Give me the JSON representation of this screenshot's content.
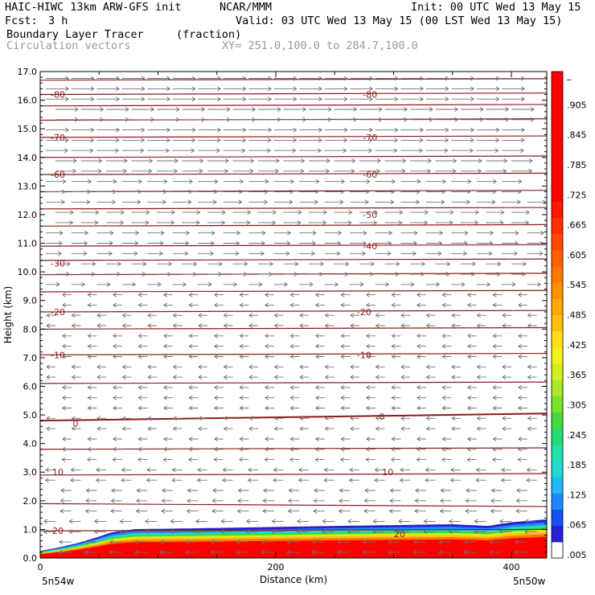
{
  "header": {
    "title": "HAIC-HIWC 13km ARW-GFS init",
    "org": "NCAR/MMM",
    "init": "Init: 00 UTC Wed 13 May 15",
    "fcst_label": "Fcst:",
    "fcst_value": "3 h",
    "valid": "Valid: 03 UTC Wed 13 May 15 (00 LST Wed 13 May 15)",
    "field_name": "Boundary Layer Tracer",
    "field_units": "(fraction)",
    "vector_label": "Circulation vectors",
    "xy_range": "XY= 251.0,100.0 to 284.7,100.0"
  },
  "footer": {
    "left_location": "5n54w",
    "right_location": "5n50w"
  },
  "colors": {
    "contour": "#8b1a1a",
    "vector": "#707070",
    "colorbar": [
      "#ffffff",
      "#2a1fd2",
      "#1650ee",
      "#1f88ff",
      "#22b6f2",
      "#22d6d2",
      "#20e0a8",
      "#28d870",
      "#46d840",
      "#7ae030",
      "#a8e828",
      "#d0f020",
      "#f4f020",
      "#ffe018",
      "#ffc010",
      "#ffa808",
      "#ff9000",
      "#ff7800",
      "#ff6000",
      "#ff4800",
      "#ff3000",
      "#ff1800",
      "#ff0000",
      "#ff0000",
      "#ff0000",
      "#ff0000",
      "#ff0000",
      "#ff0000",
      "#ff0000",
      "#ff0000"
    ]
  },
  "chart_data": {
    "type": "heatmap",
    "xlabel": "Distance (km)",
    "ylabel": "Height (km)",
    "xlim": [
      0,
      430
    ],
    "ylim": [
      0,
      17
    ],
    "x_ticks": [
      "0",
      "200",
      "400"
    ],
    "y_ticks": [
      "0.0",
      "1.0",
      "2.0",
      "3.0",
      "4.0",
      "5.0",
      "6.0",
      "7.0",
      "8.0",
      "9.0",
      "10.0",
      "11.0",
      "12.0",
      "13.0",
      "14.0",
      "15.0",
      "16.0",
      "17.0"
    ],
    "colorbar_labels": [
      ".005",
      ".065",
      ".125",
      ".185",
      ".245",
      ".305",
      ".365",
      ".425",
      ".485",
      ".545",
      ".605",
      ".665",
      ".725",
      ".785",
      ".845",
      ".905",
      "_"
    ],
    "tracer_top_km": [
      [
        0,
        0.45
      ],
      [
        30,
        0.7
      ],
      [
        60,
        1.0
      ],
      [
        100,
        1.02
      ],
      [
        150,
        1.05
      ],
      [
        250,
        1.12
      ],
      [
        350,
        1.18
      ],
      [
        380,
        1.12
      ],
      [
        400,
        1.25
      ],
      [
        430,
        1.35
      ]
    ],
    "contour_labels": [
      {
        "text": "-80",
        "x": 15,
        "y": 16.2
      },
      {
        "text": "-80",
        "x": 280,
        "y": 16.2
      },
      {
        "text": "-70",
        "x": 15,
        "y": 14.7
      },
      {
        "text": "-70",
        "x": 280,
        "y": 14.7
      },
      {
        "text": "-60",
        "x": 15,
        "y": 13.4
      },
      {
        "text": "-60",
        "x": 280,
        "y": 13.4
      },
      {
        "text": "-50",
        "x": 280,
        "y": 12.0
      },
      {
        "text": "-40",
        "x": 280,
        "y": 10.9
      },
      {
        "text": "-30",
        "x": 15,
        "y": 10.3
      },
      {
        "text": "-20",
        "x": 15,
        "y": 8.6
      },
      {
        "text": "-20",
        "x": 275,
        "y": 8.6
      },
      {
        "text": "-10",
        "x": 15,
        "y": 7.1
      },
      {
        "text": "-10",
        "x": 275,
        "y": 7.1
      },
      {
        "text": "0",
        "x": 30,
        "y": 4.7
      },
      {
        "text": "0",
        "x": 290,
        "y": 4.95
      },
      {
        "text": "10",
        "x": 15,
        "y": 3.0
      },
      {
        "text": "10",
        "x": 295,
        "y": 3.0
      },
      {
        "text": "20",
        "x": 15,
        "y": 0.95
      },
      {
        "text": "20",
        "x": 305,
        "y": 0.85
      }
    ],
    "contour_lines_km": [
      16.7,
      16.2,
      15.8,
      15.3,
      14.7,
      14.0,
      13.4,
      12.8,
      12.2,
      11.6,
      10.9,
      10.4,
      9.9,
      9.3,
      8.6,
      8.0,
      7.1,
      6.1,
      4.8,
      3.8,
      2.9,
      1.9,
      0.95
    ]
  }
}
